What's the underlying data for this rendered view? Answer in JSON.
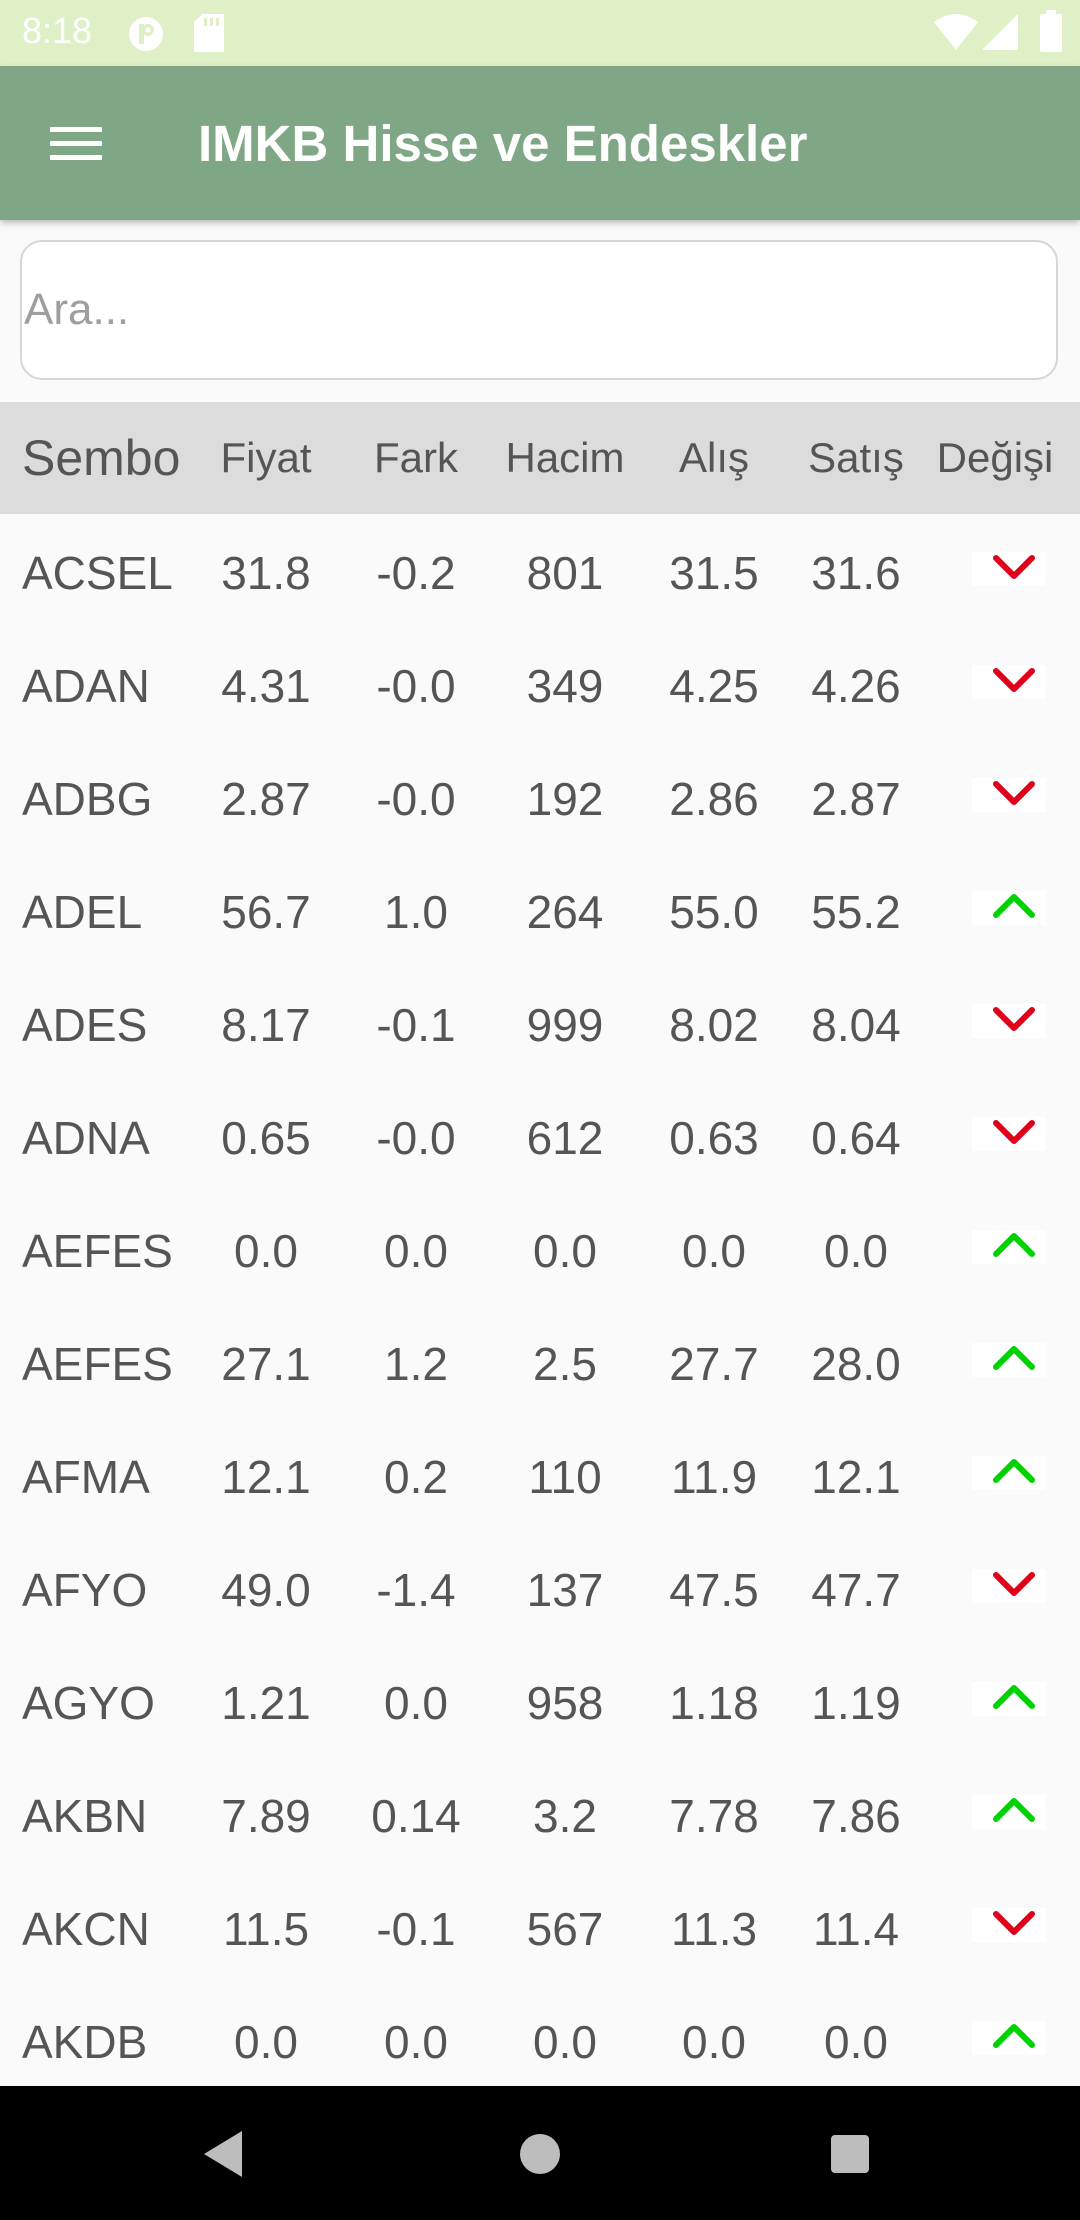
{
  "status_bar": {
    "time": "8:18",
    "icons": [
      "media-icon",
      "sd-card-icon",
      "wifi-icon",
      "signal-icon",
      "battery-icon"
    ]
  },
  "app_bar": {
    "title": "IMKB Hisse ve Endeskler",
    "menu_icon": "hamburger-menu-icon"
  },
  "search": {
    "placeholder": "Ara...",
    "value": ""
  },
  "table": {
    "headers": [
      "Sembo",
      "Fiyat",
      "Fark",
      "Hacim",
      "Alış",
      "Satış",
      "Değişi"
    ],
    "rows": [
      {
        "symbol": "ACSEL",
        "fiyat": "31.8",
        "fark": "-0.2",
        "hacim": "801",
        "alis": "31.5",
        "satis": "31.6",
        "trend": "down"
      },
      {
        "symbol": "ADAN",
        "fiyat": "4.31",
        "fark": "-0.0",
        "hacim": "349",
        "alis": "4.25",
        "satis": "4.26",
        "trend": "down"
      },
      {
        "symbol": "ADBG",
        "fiyat": "2.87",
        "fark": "-0.0",
        "hacim": "192",
        "alis": "2.86",
        "satis": "2.87",
        "trend": "down"
      },
      {
        "symbol": "ADEL",
        "fiyat": "56.7",
        "fark": "1.0",
        "hacim": "264",
        "alis": "55.0",
        "satis": "55.2",
        "trend": "up"
      },
      {
        "symbol": "ADES",
        "fiyat": "8.17",
        "fark": "-0.1",
        "hacim": "999",
        "alis": "8.02",
        "satis": "8.04",
        "trend": "down"
      },
      {
        "symbol": "ADNA",
        "fiyat": "0.65",
        "fark": "-0.0",
        "hacim": "612",
        "alis": "0.63",
        "satis": "0.64",
        "trend": "down"
      },
      {
        "symbol": "AEFES",
        "fiyat": "0.0",
        "fark": "0.0",
        "hacim": "0.0",
        "alis": "0.0",
        "satis": "0.0",
        "trend": "up"
      },
      {
        "symbol": "AEFES",
        "fiyat": "27.1",
        "fark": "1.2",
        "hacim": "2.5",
        "alis": "27.7",
        "satis": "28.0",
        "trend": "up"
      },
      {
        "symbol": "AFMA",
        "fiyat": "12.1",
        "fark": "0.2",
        "hacim": "110",
        "alis": "11.9",
        "satis": "12.1",
        "trend": "up"
      },
      {
        "symbol": "AFYO",
        "fiyat": "49.0",
        "fark": "-1.4",
        "hacim": "137",
        "alis": "47.5",
        "satis": "47.7",
        "trend": "down"
      },
      {
        "symbol": "AGYO",
        "fiyat": "1.21",
        "fark": "0.0",
        "hacim": "958",
        "alis": "1.18",
        "satis": "1.19",
        "trend": "up"
      },
      {
        "symbol": "AKBN",
        "fiyat": "7.89",
        "fark": "0.14",
        "hacim": "3.2",
        "alis": "7.78",
        "satis": "7.86",
        "trend": "up"
      },
      {
        "symbol": "AKCN",
        "fiyat": "11.5",
        "fark": "-0.1",
        "hacim": "567",
        "alis": "11.3",
        "satis": "11.4",
        "trend": "down"
      },
      {
        "symbol": "AKDB",
        "fiyat": "0.0",
        "fark": "0.0",
        "hacim": "0.0",
        "alis": "0.0",
        "satis": "0.0",
        "trend": "up"
      }
    ]
  },
  "nav_bar": {
    "icons": [
      "back-icon",
      "home-icon",
      "recents-icon"
    ]
  },
  "colors": {
    "status_bar": "#dfefc6",
    "app_bar": "#80a785",
    "header_row": "#dcdcdc",
    "trend_up": "#00d100",
    "trend_down": "#e0001a",
    "text": "#555555"
  }
}
